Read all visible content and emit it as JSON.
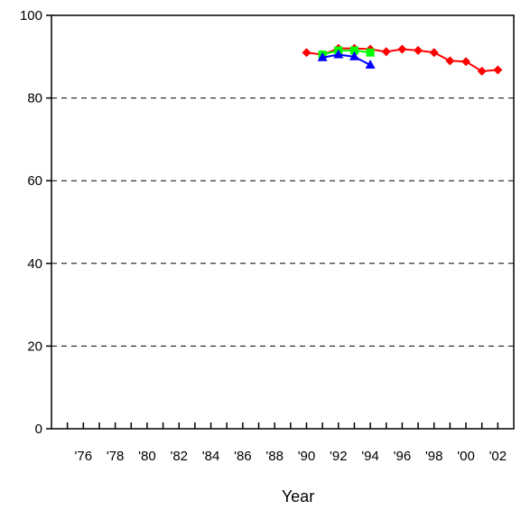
{
  "chart_data": {
    "type": "line",
    "xlabel": "Year",
    "ylabel": "",
    "title": "",
    "xlim": [
      1974,
      2003
    ],
    "ylim": [
      0,
      100
    ],
    "y_ticks": [
      0,
      20,
      40,
      60,
      80,
      100
    ],
    "x_ticks": [
      {
        "value": 1976,
        "label": "'76"
      },
      {
        "value": 1978,
        "label": "'78"
      },
      {
        "value": 1980,
        "label": "'80"
      },
      {
        "value": 1982,
        "label": "'82"
      },
      {
        "value": 1984,
        "label": "'84"
      },
      {
        "value": 1986,
        "label": "'86"
      },
      {
        "value": 1988,
        "label": "'88"
      },
      {
        "value": 1990,
        "label": "'90"
      },
      {
        "value": 1992,
        "label": "'92"
      },
      {
        "value": 1994,
        "label": "'94"
      },
      {
        "value": 1996,
        "label": "'96"
      },
      {
        "value": 1998,
        "label": "'98"
      },
      {
        "value": 2000,
        "label": "'00"
      },
      {
        "value": 2002,
        "label": "'02"
      }
    ],
    "grid": "horizontal dashed",
    "series": [
      {
        "color": "#ff0000",
        "marker": "diamond",
        "points": [
          {
            "x": 1990,
            "y": 91.0
          },
          {
            "x": 1991,
            "y": 90.5
          },
          {
            "x": 1992,
            "y": 92.0
          },
          {
            "x": 1993,
            "y": 92.0
          },
          {
            "x": 1994,
            "y": 91.8
          },
          {
            "x": 1995,
            "y": 91.2
          },
          {
            "x": 1996,
            "y": 91.8
          },
          {
            "x": 1997,
            "y": 91.5
          },
          {
            "x": 1998,
            "y": 91.0
          },
          {
            "x": 1999,
            "y": 89.0
          },
          {
            "x": 2000,
            "y": 88.8
          },
          {
            "x": 2001,
            "y": 86.5
          },
          {
            "x": 2002,
            "y": 86.8
          }
        ]
      },
      {
        "color": "#00ff00",
        "marker": "square",
        "points": [
          {
            "x": 1991,
            "y": 90.5
          },
          {
            "x": 1992,
            "y": 91.5
          },
          {
            "x": 1993,
            "y": 91.5
          },
          {
            "x": 1994,
            "y": 91.0
          }
        ]
      },
      {
        "color": "#0000ff",
        "marker": "triangle",
        "points": [
          {
            "x": 1991,
            "y": 89.8
          },
          {
            "x": 1992,
            "y": 90.5
          },
          {
            "x": 1993,
            "y": 90.0
          },
          {
            "x": 1994,
            "y": 88.0
          }
        ]
      }
    ]
  }
}
